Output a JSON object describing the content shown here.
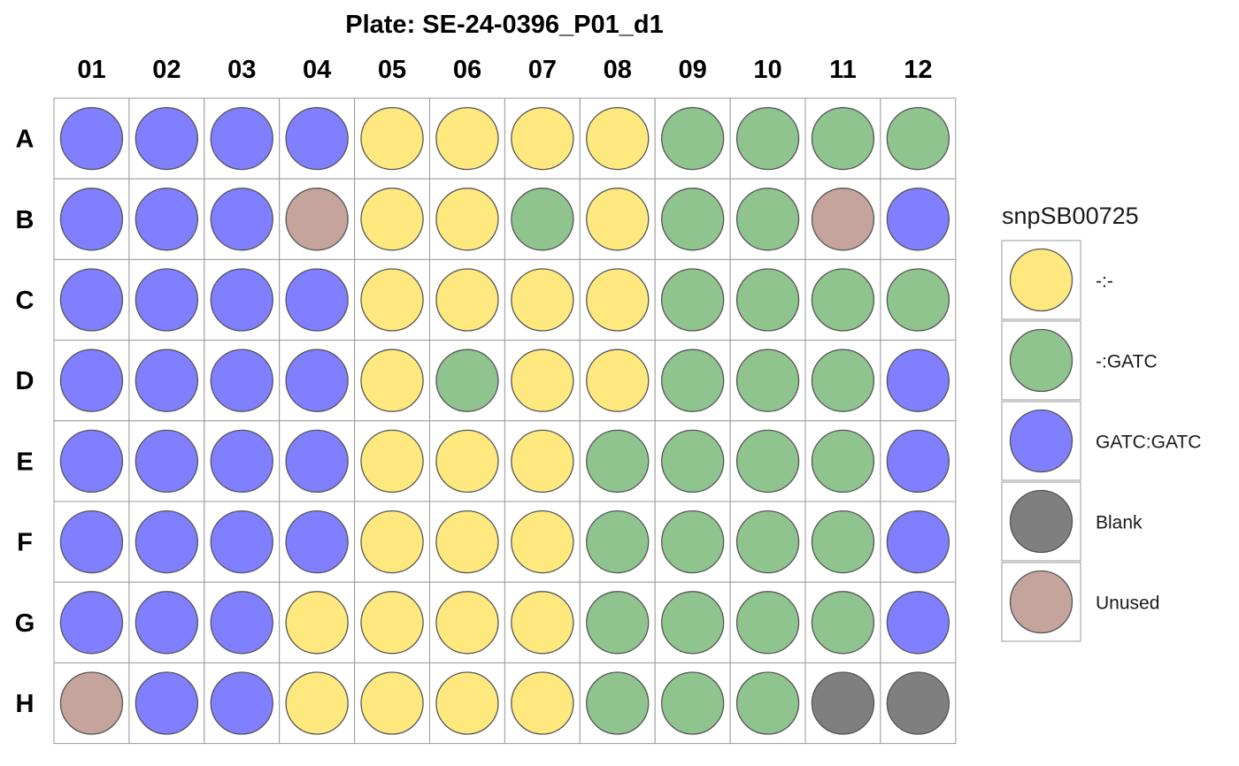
{
  "chart_data": {
    "type": "heatmap",
    "title": "Plate: SE-24-0396_P01_d1",
    "columns": [
      "01",
      "02",
      "03",
      "04",
      "05",
      "06",
      "07",
      "08",
      "09",
      "10",
      "11",
      "12"
    ],
    "rows": [
      "A",
      "B",
      "C",
      "D",
      "E",
      "F",
      "G",
      "H"
    ],
    "wells": [
      [
        "GATC:GATC",
        "GATC:GATC",
        "GATC:GATC",
        "GATC:GATC",
        "-:-",
        "-:-",
        "-:-",
        "-:-",
        "-:GATC",
        "-:GATC",
        "-:GATC",
        "-:GATC"
      ],
      [
        "GATC:GATC",
        "GATC:GATC",
        "GATC:GATC",
        "Unused",
        "-:-",
        "-:-",
        "-:GATC",
        "-:-",
        "-:GATC",
        "-:GATC",
        "Unused",
        "GATC:GATC"
      ],
      [
        "GATC:GATC",
        "GATC:GATC",
        "GATC:GATC",
        "GATC:GATC",
        "-:-",
        "-:-",
        "-:-",
        "-:-",
        "-:GATC",
        "-:GATC",
        "-:GATC",
        "-:GATC"
      ],
      [
        "GATC:GATC",
        "GATC:GATC",
        "GATC:GATC",
        "GATC:GATC",
        "-:-",
        "-:GATC",
        "-:-",
        "-:-",
        "-:GATC",
        "-:GATC",
        "-:GATC",
        "GATC:GATC"
      ],
      [
        "GATC:GATC",
        "GATC:GATC",
        "GATC:GATC",
        "GATC:GATC",
        "-:-",
        "-:-",
        "-:-",
        "-:GATC",
        "-:GATC",
        "-:GATC",
        "-:GATC",
        "GATC:GATC"
      ],
      [
        "GATC:GATC",
        "GATC:GATC",
        "GATC:GATC",
        "GATC:GATC",
        "-:-",
        "-:-",
        "-:-",
        "-:GATC",
        "-:GATC",
        "-:GATC",
        "-:GATC",
        "GATC:GATC"
      ],
      [
        "GATC:GATC",
        "GATC:GATC",
        "GATC:GATC",
        "-:-",
        "-:-",
        "-:-",
        "-:-",
        "-:GATC",
        "-:GATC",
        "-:GATC",
        "-:GATC",
        "GATC:GATC"
      ],
      [
        "Unused",
        "GATC:GATC",
        "GATC:GATC",
        "-:-",
        "-:-",
        "-:-",
        "-:-",
        "-:GATC",
        "-:GATC",
        "-:GATC",
        "Blank",
        "Blank"
      ]
    ],
    "legend": {
      "title": "snpSB00725",
      "placement": "right",
      "entries": [
        {
          "label": "-:-",
          "color": "#FFE97F"
        },
        {
          "label": "-:GATC",
          "color": "#8FC48F"
        },
        {
          "label": "GATC:GATC",
          "color": "#7F7FFF"
        },
        {
          "label": "Blank",
          "color": "#7F7F7F"
        },
        {
          "label": "Unused",
          "color": "#C4A49B"
        }
      ]
    }
  }
}
